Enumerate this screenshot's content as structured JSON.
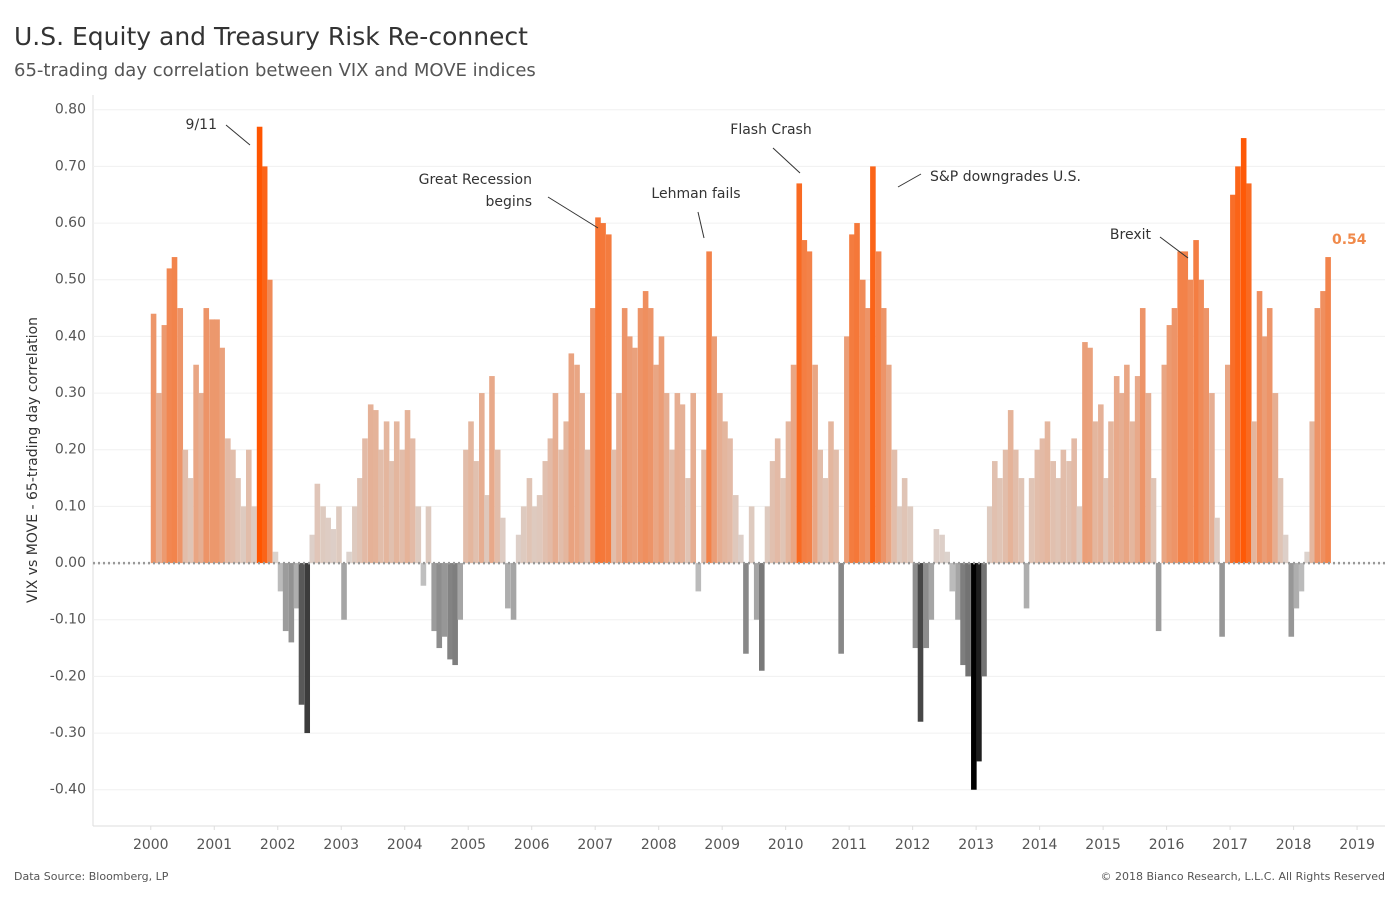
{
  "chart_data": {
    "type": "bar",
    "title": "U.S. Equity and Treasury Risk Re-connect",
    "subtitle": "65-trading day correlation between VIX and MOVE indices",
    "y_label": "VIX vs MOVE - 65-trading day correlation",
    "source": "Data Source: Bloomberg, LP",
    "copyright": "© 2018 Bianco Research, L.L.C. All Rights Reserved",
    "last_value_label": "0.54",
    "annotations": [
      {
        "lines": [
          "9/11"
        ]
      },
      {
        "lines": [
          "Great Recession",
          "begins"
        ]
      },
      {
        "lines": [
          "Lehman fails"
        ]
      },
      {
        "lines": [
          "Flash Crash"
        ]
      },
      {
        "lines": [
          "S&P downgrades U.S."
        ]
      },
      {
        "lines": [
          "Brexit"
        ]
      }
    ],
    "color_scale": {
      "min_color": "#000000",
      "zero_color": "#dcd3ce",
      "max_color": "#ff5500"
    },
    "zero_line": true,
    "grid": true,
    "xlim": [
      1999.09,
      2019.44
    ],
    "xticks": [
      2000,
      2001,
      2002,
      2003,
      2004,
      2005,
      2006,
      2007,
      2008,
      2009,
      2010,
      2011,
      2012,
      2013,
      2014,
      2015,
      2016,
      2017,
      2018,
      2019
    ],
    "ylim": [
      -0.464,
      0.826
    ],
    "yticks": [
      {
        "value": 0.8,
        "label": "0.80"
      },
      {
        "value": 0.7,
        "label": "0.70"
      },
      {
        "value": 0.6,
        "label": "0.60"
      },
      {
        "value": 0.5,
        "label": "0.50"
      },
      {
        "value": 0.4,
        "label": "0.40"
      },
      {
        "value": 0.3,
        "label": "0.30"
      },
      {
        "value": 0.2,
        "label": "0.20"
      },
      {
        "value": 0.1,
        "label": "0.10"
      },
      {
        "value": 0,
        "label": "0.00"
      },
      {
        "value": -0.1,
        "label": "-0.10"
      },
      {
        "value": -0.2,
        "label": "-0.20"
      },
      {
        "value": -0.3,
        "label": "-0.30"
      },
      {
        "value": -0.4,
        "label": "-0.40"
      }
    ],
    "x": [
      2000,
      2000.08,
      2000.17,
      2000.25,
      2000.33,
      2000.42,
      2000.5,
      2000.58,
      2000.67,
      2000.75,
      2000.83,
      2000.92,
      2001,
      2001.08,
      2001.17,
      2001.25,
      2001.33,
      2001.42,
      2001.5,
      2001.58,
      2001.67,
      2001.75,
      2001.83,
      2001.92,
      2002,
      2002.08,
      2002.17,
      2002.25,
      2002.33,
      2002.42,
      2002.5,
      2002.58,
      2002.67,
      2002.75,
      2002.83,
      2002.92,
      2003,
      2003.08,
      2003.17,
      2003.25,
      2003.33,
      2003.42,
      2003.5,
      2003.58,
      2003.67,
      2003.75,
      2003.83,
      2003.92,
      2004,
      2004.08,
      2004.17,
      2004.25,
      2004.33,
      2004.42,
      2004.5,
      2004.58,
      2004.67,
      2004.75,
      2004.83,
      2004.92,
      2005,
      2005.08,
      2005.17,
      2005.25,
      2005.33,
      2005.42,
      2005.5,
      2005.58,
      2005.67,
      2005.75,
      2005.83,
      2005.92,
      2006,
      2006.08,
      2006.17,
      2006.25,
      2006.33,
      2006.42,
      2006.5,
      2006.58,
      2006.67,
      2006.75,
      2006.83,
      2006.92,
      2007,
      2007.08,
      2007.17,
      2007.25,
      2007.33,
      2007.42,
      2007.5,
      2007.58,
      2007.67,
      2007.75,
      2007.83,
      2007.92,
      2008,
      2008.08,
      2008.17,
      2008.25,
      2008.33,
      2008.42,
      2008.5,
      2008.58,
      2008.67,
      2008.75,
      2008.83,
      2008.92,
      2009,
      2009.08,
      2009.17,
      2009.25,
      2009.33,
      2009.42,
      2009.5,
      2009.58,
      2009.67,
      2009.75,
      2009.83,
      2009.92,
      2010,
      2010.08,
      2010.17,
      2010.25,
      2010.33,
      2010.42,
      2010.5,
      2010.58,
      2010.67,
      2010.75,
      2010.83,
      2010.92,
      2011,
      2011.08,
      2011.17,
      2011.25,
      2011.33,
      2011.42,
      2011.5,
      2011.58,
      2011.67,
      2011.75,
      2011.83,
      2011.92,
      2012,
      2012.08,
      2012.17,
      2012.25,
      2012.33,
      2012.42,
      2012.5,
      2012.58,
      2012.67,
      2012.75,
      2012.83,
      2012.92,
      2013,
      2013.08,
      2013.17,
      2013.25,
      2013.33,
      2013.42,
      2013.5,
      2013.58,
      2013.67,
      2013.75,
      2013.83,
      2013.92,
      2014,
      2014.08,
      2014.17,
      2014.25,
      2014.33,
      2014.42,
      2014.5,
      2014.58,
      2014.67,
      2014.75,
      2014.83,
      2014.92,
      2015,
      2015.08,
      2015.17,
      2015.25,
      2015.33,
      2015.42,
      2015.5,
      2015.58,
      2015.67,
      2015.75,
      2015.83,
      2015.92,
      2016,
      2016.08,
      2016.17,
      2016.25,
      2016.33,
      2016.42,
      2016.5,
      2016.58,
      2016.67,
      2016.75,
      2016.83,
      2016.92,
      2017,
      2017.08,
      2017.17,
      2017.25,
      2017.33,
      2017.42,
      2017.5,
      2017.58,
      2017.67,
      2017.75,
      2017.83,
      2017.92,
      2018,
      2018.08,
      2018.17,
      2018.25,
      2018.33,
      2018.42,
      2018.5
    ],
    "values": [
      0.44,
      0.3,
      0.42,
      0.52,
      0.54,
      0.45,
      0.2,
      0.15,
      0.35,
      0.3,
      0.45,
      0.43,
      0.43,
      0.38,
      0.22,
      0.2,
      0.15,
      0.1,
      0.2,
      0.1,
      0.77,
      0.7,
      0.5,
      0.02,
      -0.05,
      -0.12,
      -0.14,
      -0.08,
      -0.25,
      -0.3,
      0.05,
      0.14,
      0.1,
      0.08,
      0.06,
      0.1,
      -0.1,
      0.02,
      0.1,
      0.15,
      0.22,
      0.28,
      0.27,
      0.2,
      0.25,
      0.18,
      0.25,
      0.2,
      0.27,
      0.22,
      0.1,
      -0.04,
      0.1,
      -0.12,
      -0.15,
      -0.13,
      -0.17,
      -0.18,
      -0.1,
      0.2,
      0.25,
      0.18,
      0.3,
      0.12,
      0.33,
      0.2,
      0.08,
      -0.08,
      -0.1,
      0.05,
      0.1,
      0.15,
      0.1,
      0.12,
      0.18,
      0.22,
      0.3,
      0.2,
      0.25,
      0.37,
      0.35,
      0.3,
      0.2,
      0.45,
      0.61,
      0.6,
      0.58,
      0.2,
      0.3,
      0.45,
      0.4,
      0.38,
      0.45,
      0.48,
      0.45,
      0.35,
      0.4,
      0.3,
      0.2,
      0.3,
      0.28,
      0.15,
      0.3,
      -0.05,
      0.2,
      0.55,
      0.4,
      0.3,
      0.25,
      0.22,
      0.12,
      0.05,
      -0.16,
      0.1,
      -0.1,
      -0.19,
      0.1,
      0.18,
      0.22,
      0.15,
      0.25,
      0.35,
      0.67,
      0.57,
      0.55,
      0.35,
      0.2,
      0.15,
      0.25,
      0.2,
      -0.16,
      0.4,
      0.58,
      0.6,
      0.5,
      0.45,
      0.7,
      0.55,
      0.45,
      0.35,
      0.2,
      0.1,
      0.15,
      0.1,
      -0.15,
      -0.28,
      -0.15,
      -0.1,
      0.06,
      0.05,
      0.02,
      -0.05,
      -0.1,
      -0.18,
      -0.2,
      -0.4,
      -0.35,
      -0.2,
      0.1,
      0.18,
      0.15,
      0.2,
      0.27,
      0.2,
      0.15,
      -0.08,
      0.15,
      0.2,
      0.22,
      0.25,
      0.18,
      0.15,
      0.2,
      0.18,
      0.22,
      0.1,
      0.39,
      0.38,
      0.25,
      0.28,
      0.15,
      0.25,
      0.33,
      0.3,
      0.35,
      0.25,
      0.33,
      0.45,
      0.3,
      0.15,
      -0.12,
      0.35,
      0.42,
      0.45,
      0.55,
      0.55,
      0.5,
      0.57,
      0.5,
      0.45,
      0.3,
      0.08,
      -0.13,
      0.35,
      0.65,
      0.7,
      0.75,
      0.67,
      0.25,
      0.48,
      0.4,
      0.45,
      0.3,
      0.15,
      0.05,
      -0.13,
      -0.08,
      -0.05,
      0.02,
      0.25,
      0.45,
      0.48,
      0.54
    ]
  }
}
